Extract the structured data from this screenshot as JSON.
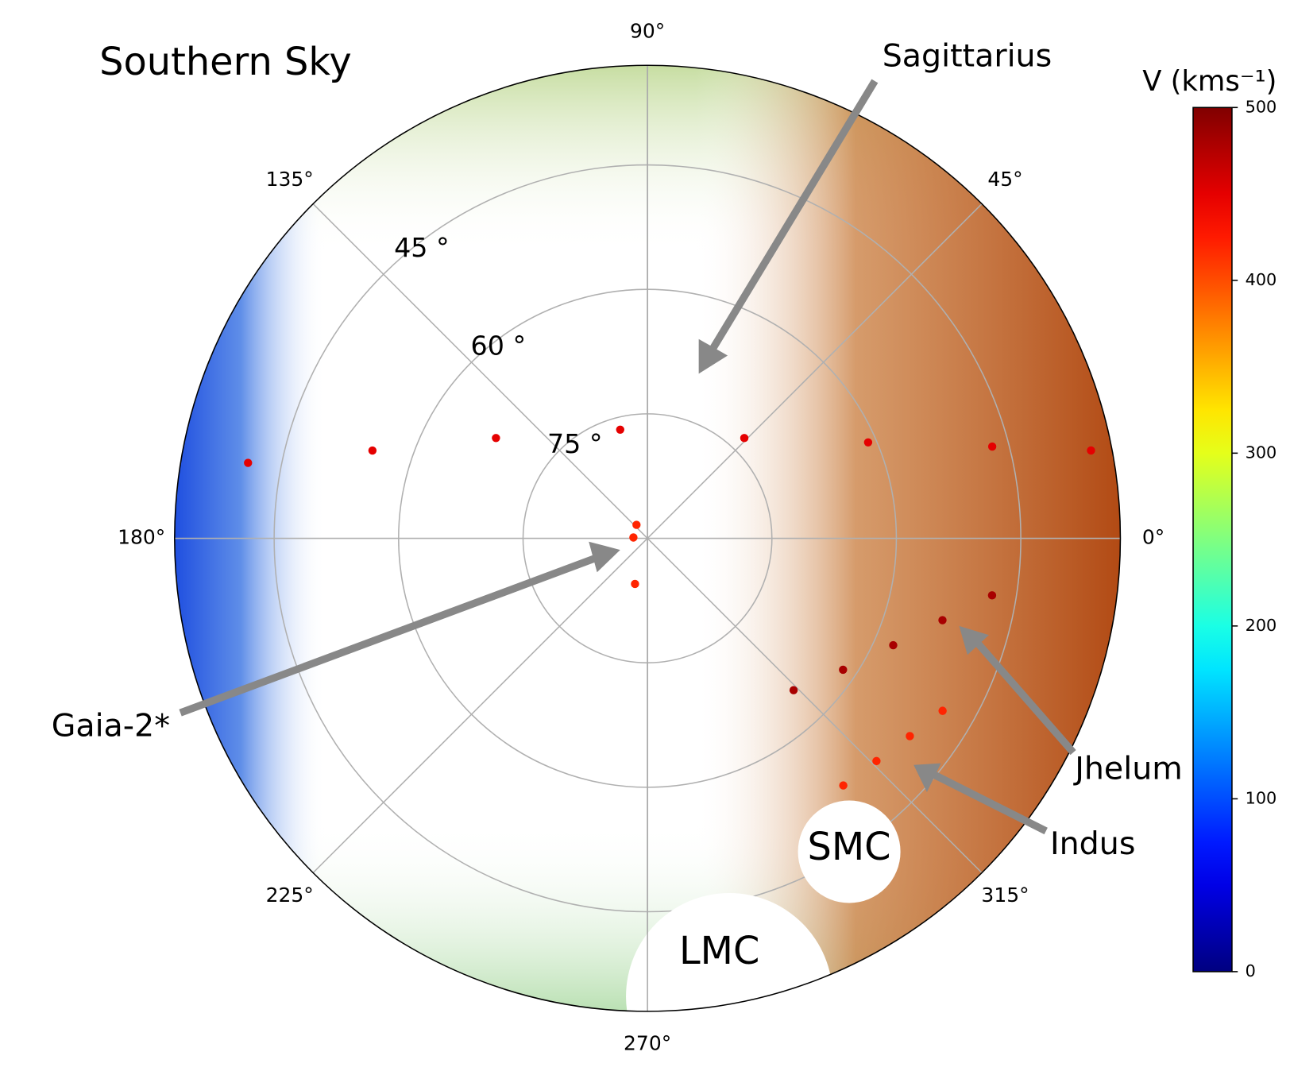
{
  "chart_data": {
    "type": "polar-scatter",
    "title": "Southern Sky",
    "xticks": [
      {
        "value": 0,
        "label": "0°"
      },
      {
        "value": 45,
        "label": "45°"
      },
      {
        "value": 90,
        "label": "90°"
      },
      {
        "value": 135,
        "label": "135°"
      },
      {
        "value": 180,
        "label": "180°"
      },
      {
        "value": 225,
        "label": "225°"
      },
      {
        "value": 270,
        "label": "270°"
      },
      {
        "value": 315,
        "label": "315°"
      }
    ],
    "ylim": [
      90,
      33
    ],
    "yticks": [
      {
        "value": 45,
        "label": "45 °"
      },
      {
        "value": 60,
        "label": "60 °"
      },
      {
        "value": 75,
        "label": "75 °"
      }
    ],
    "grid": true,
    "colormap": "jet",
    "clim": [
      0,
      500
    ],
    "cticks": [
      0,
      100,
      200,
      300,
      400,
      500
    ],
    "colorbar_label": "V (kms⁻¹)",
    "series": [
      {
        "name": "Sagittarius",
        "x": [
          169.3,
          162.3,
          146.5,
          104.1,
          46.0,
          23.5,
          14.9,
          11.2
        ],
        "values": [
          41.0,
          55.2,
          68.1,
          76.5,
          73.2,
          61.0,
          47.0,
          35.5
        ],
        "velocity": [
          450,
          450,
          450,
          450,
          450,
          450,
          450,
          450
        ]
      },
      {
        "name": "Gaia-2*",
        "x": [
          129.1,
          176.6,
          254.7
        ],
        "values": [
          87.9,
          88.3,
          84.3
        ],
        "velocity": [
          420,
          420,
          420
        ]
      },
      {
        "name": "Jhelum",
        "x": [
          313.9,
          326.1,
          336.5,
          344.5,
          350.6
        ],
        "values": [
          64.6,
          61.6,
          57.7,
          53.1,
          47.9
        ],
        "velocity": [
          480,
          480,
          480,
          480,
          480
        ]
      },
      {
        "name": "Indus",
        "x": [
          308.4,
          315.8,
          323.0,
          329.7
        ],
        "values": [
          52.0,
          51.5,
          50.4,
          48.8
        ],
        "velocity": [
          420,
          420,
          420,
          420
        ]
      }
    ],
    "masks": [
      "SMC",
      "LMC"
    ]
  }
}
